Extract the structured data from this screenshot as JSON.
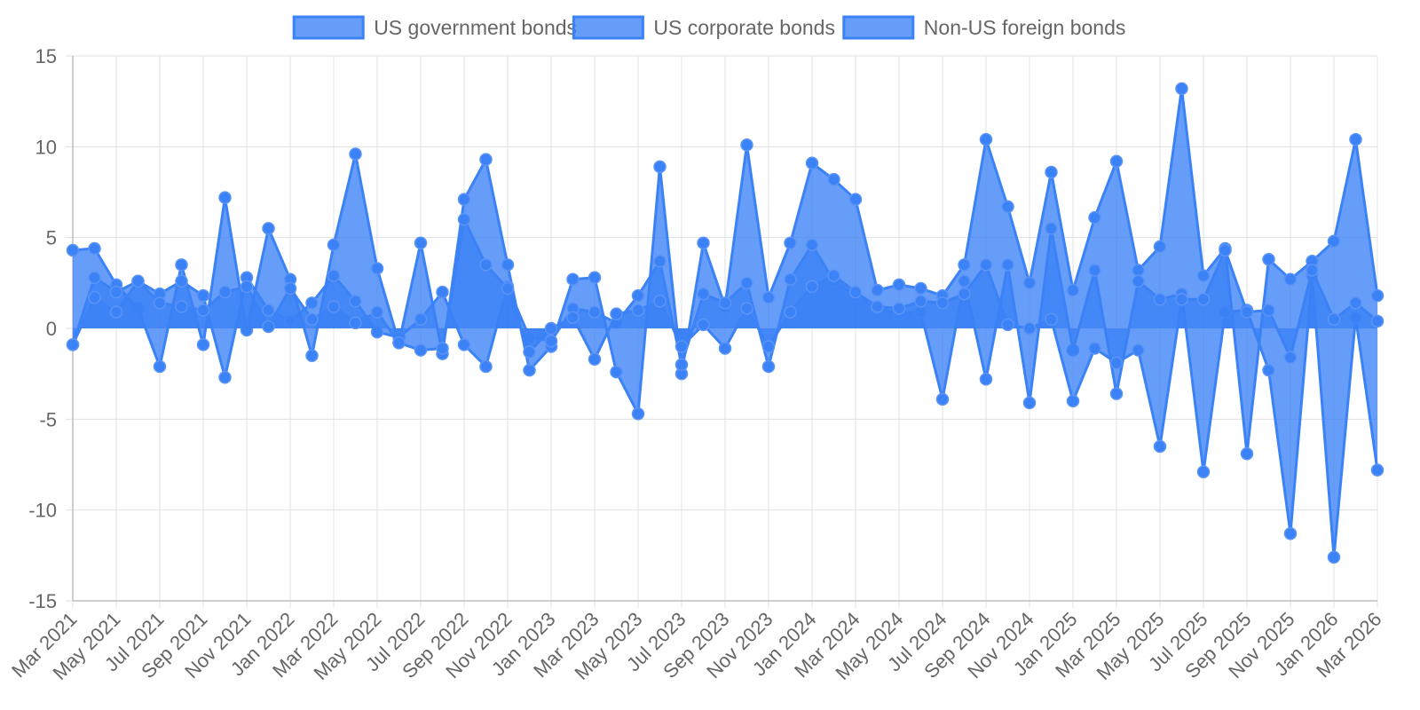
{
  "chart_data": {
    "type": "area",
    "x": [
      "Mar 2021",
      "Apr 2021",
      "May 2021",
      "Jun 2021",
      "Jul 2021",
      "Aug 2021",
      "Sep 2021",
      "Oct 2021",
      "Nov 2021",
      "Dec 2021",
      "Jan 2022",
      "Feb 2022",
      "Mar 2022",
      "Apr 2022",
      "May 2022",
      "Jun 2022",
      "Jul 2022",
      "Aug 2022",
      "Sep 2022",
      "Oct 2022",
      "Nov 2022",
      "Dec 2022",
      "Jan 2023",
      "Feb 2023",
      "Mar 2023",
      "Apr 2023",
      "May 2023",
      "Jun 2023",
      "Jul 2023",
      "Aug 2023",
      "Sep 2023",
      "Oct 2023",
      "Nov 2023",
      "Dec 2023",
      "Jan 2024",
      "Feb 2024",
      "Mar 2024",
      "Apr 2024",
      "May 2024",
      "Jun 2024",
      "Jul 2024",
      "Aug 2024",
      "Sep 2024",
      "Oct 2024",
      "Nov 2024",
      "Dec 2024",
      "Jan 2025",
      "Feb 2025",
      "Mar 2025",
      "Apr 2025",
      "May 2025",
      "Jun 2025",
      "Jul 2025",
      "Aug 2025",
      "Sep 2025",
      "Oct 2025",
      "Nov 2025",
      "Dec 2025",
      "Jan 2026",
      "Feb 2026",
      "Mar 2026"
    ],
    "x_tick_labels": [
      "Mar 2021",
      "May 2021",
      "Jul 2021",
      "Sep 2021",
      "Nov 2021",
      "Jan 2022",
      "Mar 2022",
      "May 2022",
      "Jul 2022",
      "Sep 2022",
      "Nov 2022",
      "Jan 2023",
      "Mar 2023",
      "May 2023",
      "Jul 2023",
      "Sep 2023",
      "Nov 2023",
      "Jan 2024",
      "Mar 2024",
      "May 2024",
      "Jul 2024",
      "Sep 2024",
      "Nov 2024",
      "Jan 2025",
      "Mar 2025",
      "May 2025",
      "Jul 2025",
      "Sep 2025",
      "Nov 2025",
      "Jan 2026",
      "Mar 2026"
    ],
    "series": [
      {
        "name": "US government bonds",
        "values": [
          4.3,
          4.4,
          2.4,
          1.1,
          -2.1,
          3.5,
          -0.9,
          7.2,
          -0.1,
          5.5,
          2.7,
          -1.5,
          4.6,
          9.6,
          3.3,
          -0.8,
          4.7,
          -1.4,
          7.1,
          9.3,
          3.5,
          -2.3,
          -1.0,
          2.7,
          2.8,
          -2.4,
          -4.7,
          8.9,
          -2.5,
          4.7,
          1.2,
          10.1,
          1.7,
          4.7,
          9.1,
          8.2,
          7.1,
          2.1,
          2.4,
          2.2,
          1.8,
          3.5,
          10.4,
          6.7,
          2.5,
          8.6,
          2.1,
          6.1,
          9.2,
          3.2,
          4.5,
          13.2,
          2.9,
          4.4,
          -6.9,
          3.8,
          2.7,
          3.7,
          4.8,
          10.4,
          1.8
        ]
      },
      {
        "name": "US corporate bonds",
        "values": [
          -0.9,
          2.8,
          2.0,
          2.6,
          1.9,
          2.6,
          1.8,
          -2.7,
          2.8,
          1.0,
          0.4,
          1.4,
          2.9,
          1.5,
          -0.2,
          -0.5,
          0.5,
          2.0,
          -0.9,
          -2.1,
          2.3,
          -0.5,
          -0.7,
          1.1,
          0.9,
          0.3,
          1.8,
          3.7,
          -2.0,
          1.9,
          1.4,
          2.5,
          -2.1,
          2.7,
          4.6,
          2.6,
          1.8,
          1.1,
          0.8,
          0.9,
          -3.9,
          2.6,
          -2.8,
          3.5,
          -4.1,
          5.5,
          -1.2,
          3.2,
          -3.6,
          2.6,
          1.6,
          1.9,
          -7.9,
          0.9,
          1.0,
          -2.3,
          -11.3,
          2.9,
          -12.6,
          0.6,
          -7.8
        ]
      },
      {
        "name": "Non-US foreign bonds",
        "values": [
          -0.9,
          1.7,
          0.9,
          2.6,
          1.4,
          1.2,
          1.0,
          2.0,
          2.3,
          0.1,
          2.2,
          0.5,
          1.2,
          0.3,
          0.9,
          -0.8,
          -1.2,
          -1.1,
          6.0,
          3.5,
          2.2,
          -1.3,
          0.0,
          0.6,
          -1.7,
          0.8,
          1.0,
          1.5,
          -1.0,
          0.2,
          -1.1,
          1.1,
          -1.0,
          0.9,
          2.3,
          2.9,
          2.0,
          1.2,
          1.1,
          1.5,
          1.4,
          1.9,
          3.5,
          0.2,
          0.0,
          0.5,
          -4.0,
          -1.1,
          -1.9,
          -1.2,
          -6.5,
          1.6,
          1.6,
          4.3,
          0.9,
          1.0,
          -1.6,
          3.2,
          0.5,
          1.4,
          0.4
        ]
      }
    ],
    "ylim": [
      -15,
      15
    ],
    "y_ticks": [
      15,
      10,
      5,
      0,
      -5,
      -10,
      -15
    ],
    "grid": true,
    "legend_position": "top-center",
    "fill_color": "#3b82f6",
    "fill_opacity": 0.78,
    "line_color": "#3b82f6",
    "grid_color": "#e0e0e0",
    "tick_color": "#666666"
  }
}
